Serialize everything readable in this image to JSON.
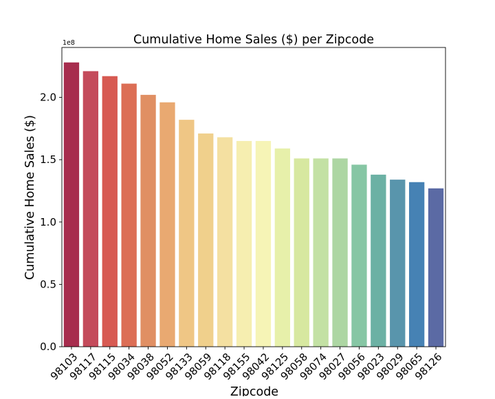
{
  "chart_data": {
    "type": "bar",
    "title": "Cumulative Home Sales ($) per Zipcode",
    "xlabel": "Zipcode",
    "ylabel": "Cumulative Home Sales ($)",
    "offset_label": "1e8",
    "ylim": [
      0,
      2.4
    ],
    "yticks": [
      "0.0",
      "0.5",
      "1.0",
      "1.5",
      "2.0"
    ],
    "ytick_values": [
      0,
      0.5,
      1.0,
      1.5,
      2.0
    ],
    "categories": [
      "98103",
      "98117",
      "98115",
      "98034",
      "98038",
      "98052",
      "98133",
      "98059",
      "98118",
      "98155",
      "98042",
      "98125",
      "98058",
      "98074",
      "98027",
      "98056",
      "98023",
      "98029",
      "98065",
      "98126"
    ],
    "values": [
      2.28,
      2.21,
      2.17,
      2.11,
      2.02,
      1.96,
      1.82,
      1.71,
      1.68,
      1.65,
      1.65,
      1.59,
      1.51,
      1.51,
      1.51,
      1.46,
      1.38,
      1.34,
      1.32,
      1.27
    ],
    "colors": [
      "#a72d4e",
      "#c44b5b",
      "#d75a52",
      "#dc6e55",
      "#e08f63",
      "#e9a971",
      "#efc685",
      "#f0d08c",
      "#f4e0a1",
      "#f6eeb0",
      "#f6f4b6",
      "#e7f0aa",
      "#d7e8a0",
      "#c3e1a4",
      "#add6a3",
      "#86c6a4",
      "#6cb1a4",
      "#5995ac",
      "#4682b4",
      "#5b6aa4"
    ],
    "grid": false,
    "legend": "none"
  }
}
